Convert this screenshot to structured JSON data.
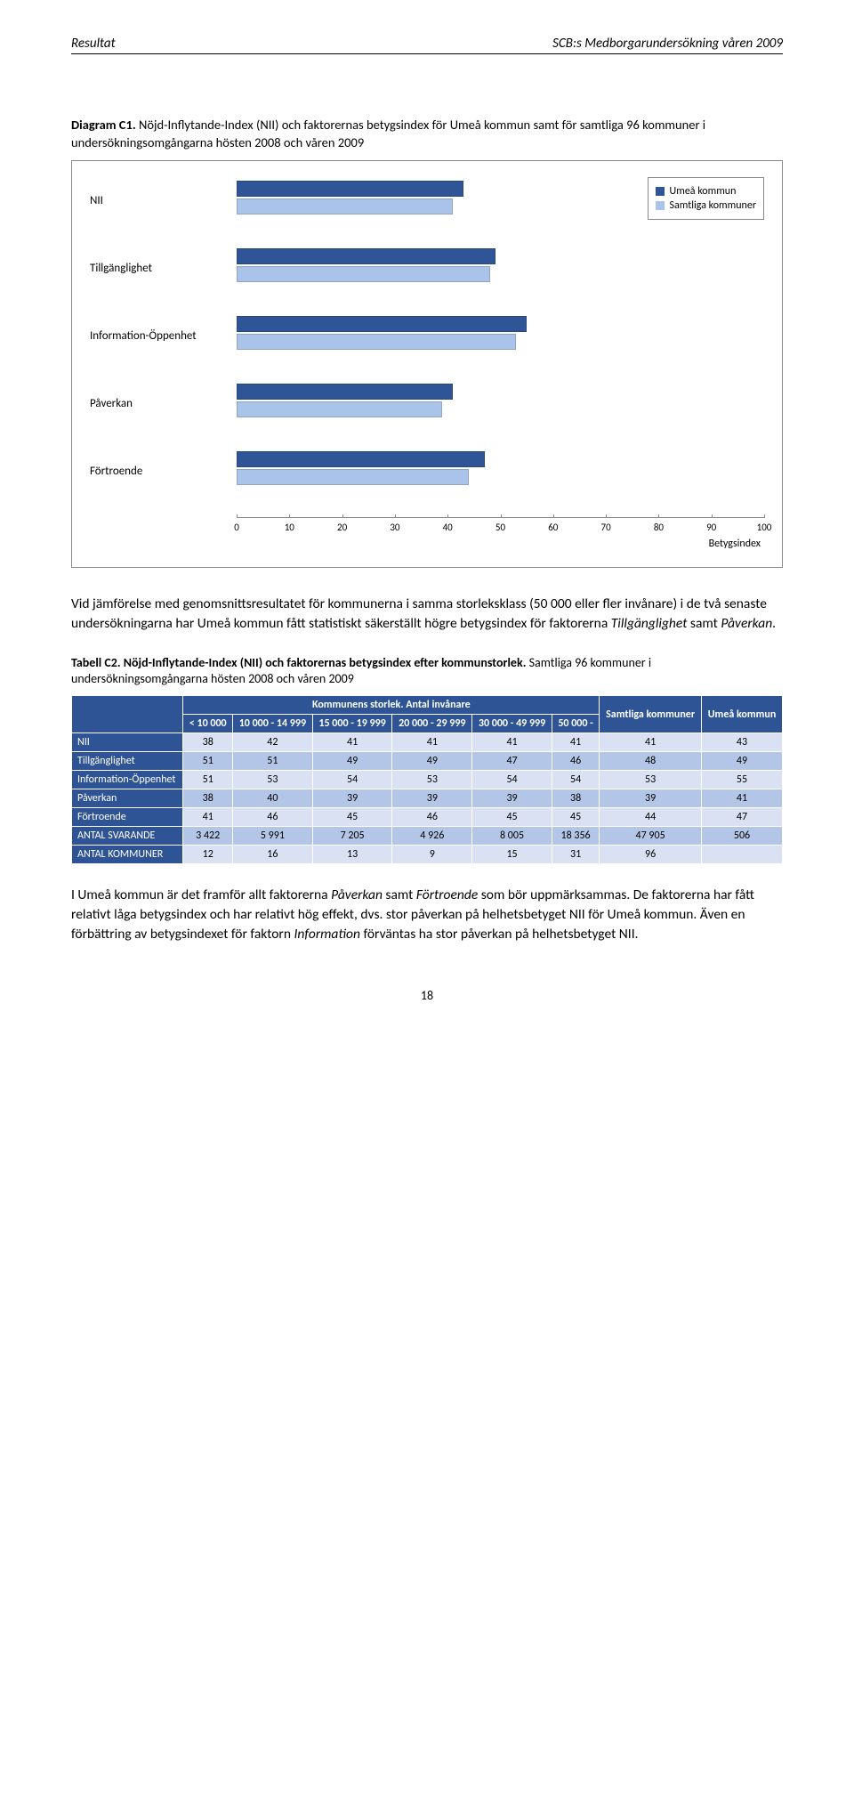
{
  "header": {
    "left": "Resultat",
    "right": "SCB:s Medborgarundersökning våren 2009"
  },
  "diagram": {
    "caption_prefix": "Diagram C1.",
    "caption_rest": " Nöjd-Inflytande-Index (NII) och faktorernas betygsindex för Umeå kommun samt för samtliga 96 kommuner i undersökningsomgångarna hösten 2008 och våren 2009",
    "legend": {
      "a_label": "Umeå kommun",
      "b_label": "Samtliga kommuner"
    },
    "colors": {
      "series_a": "#2f5597",
      "series_b": "#a9c4e8",
      "frame": "#888888",
      "header_bg": "#2f5496",
      "row_odd": "#d9e1f2",
      "row_even": "#b4c6e7"
    },
    "x_axis": {
      "min": 0,
      "max": 100,
      "step": 10,
      "title": "Betygsindex"
    },
    "rows": [
      {
        "label": "NII",
        "a": 43,
        "b": 41
      },
      {
        "label": "Tillgänglighet",
        "a": 49,
        "b": 48
      },
      {
        "label": "Information-Öppenhet",
        "a": 55,
        "b": 53
      },
      {
        "label": "Påverkan",
        "a": 41,
        "b": 39
      },
      {
        "label": "Förtroende",
        "a": 47,
        "b": 44
      }
    ]
  },
  "paragraph1": {
    "t1": "Vid jämförelse med genomsnittsresultatet för kommunerna i samma storleksklass (50 000 eller fler invånare) i de två senaste undersökningarna har Umeå kommun fått statistiskt säkerställt högre betygsindex för faktorerna ",
    "e1": "Tillgänglighet",
    "t2": " samt ",
    "e2": "Påverkan",
    "t3": "."
  },
  "table": {
    "caption_prefix": "Tabell C2.",
    "caption_rest_strong": " Nöjd-Inflytande-Index (NII) och faktorernas betygsindex efter kommunstorlek.",
    "caption_rest_plain": " Samtliga 96 kommuner i undersökningsomgångarna hösten 2008 och våren 2009",
    "super_header": "Kommunens storlek. Antal invånare",
    "col_samtliga": "Samtliga kommuner",
    "col_umea": "Umeå kommun",
    "size_cols": [
      "< 10 000",
      "10 000 - 14 999",
      "15 000 - 19 999",
      "20 000 - 29 999",
      "30 000 - 49 999",
      "50 000 -"
    ],
    "rows": [
      {
        "label": "NII",
        "v": [
          38,
          42,
          41,
          41,
          41,
          41,
          41,
          43
        ]
      },
      {
        "label": "Tillgänglighet",
        "v": [
          51,
          51,
          49,
          49,
          47,
          46,
          48,
          49
        ]
      },
      {
        "label": "Information-Öppenhet",
        "v": [
          51,
          53,
          54,
          53,
          54,
          54,
          53,
          55
        ]
      },
      {
        "label": "Påverkan",
        "v": [
          38,
          40,
          39,
          39,
          39,
          38,
          39,
          41
        ]
      },
      {
        "label": "Förtroende",
        "v": [
          41,
          46,
          45,
          46,
          45,
          45,
          44,
          47
        ]
      },
      {
        "label": "ANTAL SVARANDE",
        "v": [
          "3 422",
          "5 991",
          "7 205",
          "4 926",
          "8 005",
          "18 356",
          "47 905",
          "506"
        ]
      },
      {
        "label": "ANTAL KOMMUNER",
        "v": [
          12,
          16,
          13,
          9,
          15,
          31,
          96,
          ""
        ]
      }
    ]
  },
  "paragraph2": {
    "t1": "I Umeå kommun är det framför allt faktorerna ",
    "e1": "Påverkan",
    "t2": " samt ",
    "e2": "Förtroende",
    "t3": " som bör uppmärksammas. De faktorerna har fått relativt låga betygsindex och har relativt hög effekt, dvs. stor påverkan på helhetsbetyget NII för Umeå kommun. Även en förbättring av betygsindexet för faktorn ",
    "e3": "Information",
    "t4": " förväntas ha stor påverkan på helhetsbetyget NII."
  },
  "page_number": "18"
}
